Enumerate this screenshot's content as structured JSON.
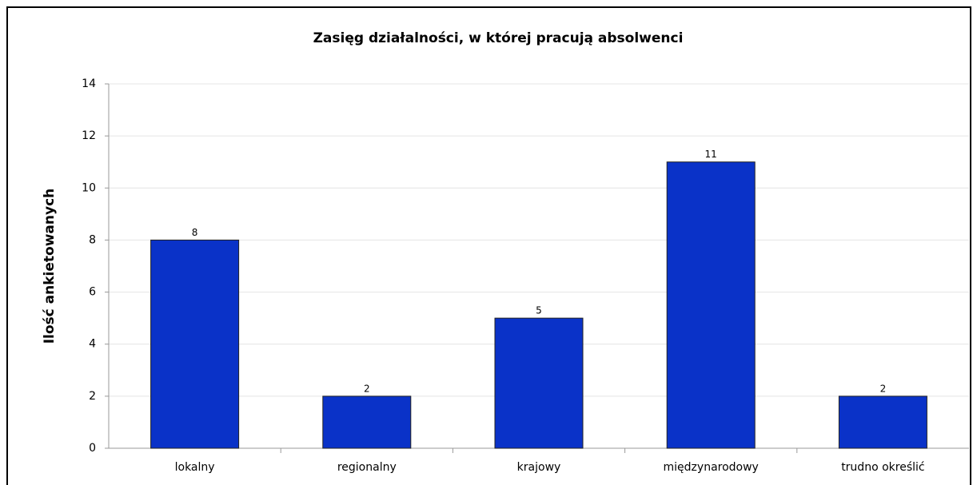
{
  "chart_data": {
    "type": "bar",
    "title": "Zasięg działalności, w której pracują absolwenci",
    "y_label": "Ilość ankietowanych",
    "categories": [
      "lokalny",
      "regionalny",
      "krajowy",
      "międzynarodowy",
      "trudno określić"
    ],
    "values": [
      8,
      2,
      5,
      11,
      2
    ],
    "color": "#0a32c8",
    "ylim": [
      0,
      14
    ],
    "yticks": [
      0,
      2,
      4,
      6,
      8,
      10,
      12,
      14
    ],
    "grid": true
  }
}
